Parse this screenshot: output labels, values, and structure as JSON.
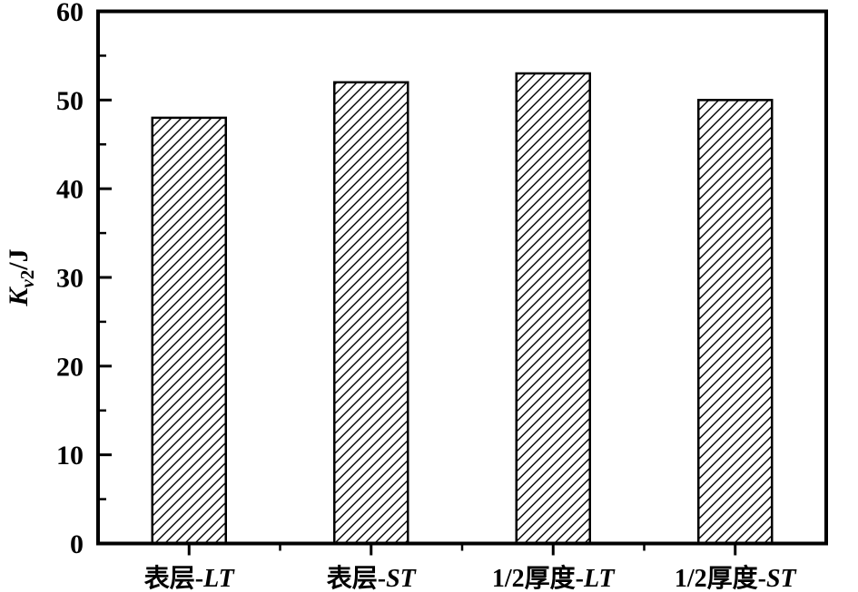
{
  "figure": {
    "background": "#ffffff",
    "line_color": "#000000"
  },
  "chart_data": {
    "type": "bar",
    "title": "",
    "xlabel": "",
    "ylabel": "Kv2/J",
    "ylabel_parts": {
      "main_italic": "K",
      "sub_italic": "v",
      "sub": "2",
      "rest": "/J"
    },
    "categories": [
      "表层-LT",
      "表层-ST",
      "1/2厚度-LT",
      "1/2厚度-ST"
    ],
    "category_parts": [
      {
        "plain": "表层-",
        "italic": "LT"
      },
      {
        "plain": "表层-",
        "italic": "ST"
      },
      {
        "plain": "1/2厚度-",
        "italic": "LT"
      },
      {
        "plain": "1/2厚度-",
        "italic": "ST"
      }
    ],
    "values": [
      48,
      52,
      53,
      50
    ],
    "ylim": [
      0,
      60
    ],
    "yticks_major": [
      0,
      10,
      20,
      30,
      40,
      50,
      60
    ],
    "yticks_minor": [
      5,
      15,
      25,
      35,
      45,
      55
    ],
    "grid": false,
    "legend": null,
    "bar_style": {
      "fill": "diagonal-hatch",
      "hatch_angle_deg": 45,
      "hatch_color": "#000000",
      "outline_color": "#000000"
    },
    "axis_style": {
      "frame": "full-box",
      "y_tick_direction": "in",
      "x_tick_direction": "out"
    }
  }
}
